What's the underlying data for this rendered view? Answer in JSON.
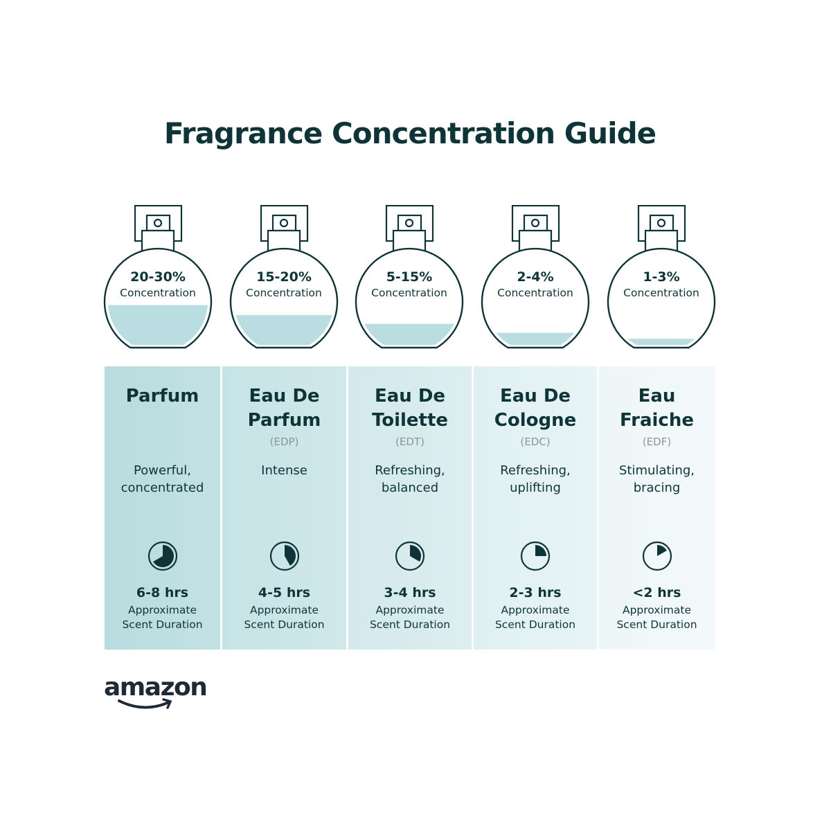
{
  "title": "Fragrance Concentration Guide",
  "colors": {
    "ink": "#0f3438",
    "liquid": "#b9dde0",
    "column_dark": "#b8dce0",
    "column_light": "#eef6f7"
  },
  "items": [
    {
      "concentration": "20-30%",
      "concentration_label": "Concentration",
      "fill_level": 0.43,
      "name_line1": "Parfum",
      "name_line2": "",
      "abbreviation": "",
      "desc_line1": "Powerful,",
      "desc_line2": "concentrated",
      "duration": "6-8 hrs",
      "duration_clock_hours": 8,
      "duration_line1": "Approximate",
      "duration_line2": "Scent Duration"
    },
    {
      "concentration": "15-20%",
      "concentration_label": "Concentration",
      "fill_level": 0.33,
      "name_line1": "Eau De",
      "name_line2": "Parfum",
      "abbreviation": "(EDP)",
      "desc_line1": "Intense",
      "desc_line2": "",
      "duration": "4-5 hrs",
      "duration_clock_hours": 5,
      "duration_line1": "Approximate",
      "duration_line2": "Scent Duration"
    },
    {
      "concentration": "5-15%",
      "concentration_label": "Concentration",
      "fill_level": 0.24,
      "name_line1": "Eau De",
      "name_line2": "Toilette",
      "abbreviation": "(EDT)",
      "desc_line1": "Refreshing,",
      "desc_line2": "balanced",
      "duration": "3-4 hrs",
      "duration_clock_hours": 4,
      "duration_line1": "Approximate",
      "duration_line2": "Scent Duration"
    },
    {
      "concentration": "2-4%",
      "concentration_label": "Concentration",
      "fill_level": 0.15,
      "name_line1": "Eau De",
      "name_line2": "Cologne",
      "abbreviation": "(EDC)",
      "desc_line1": "Refreshing,",
      "desc_line2": "uplifting",
      "duration": "2-3 hrs",
      "duration_clock_hours": 3,
      "duration_line1": "Approximate",
      "duration_line2": "Scent Duration"
    },
    {
      "concentration": "1-3%",
      "concentration_label": "Concentration",
      "fill_level": 0.09,
      "name_line1": "Eau",
      "name_line2": "Fraiche",
      "abbreviation": "(EDF)",
      "desc_line1": "Stimulating,",
      "desc_line2": "bracing",
      "duration": "<2 hrs",
      "duration_clock_hours": 2,
      "duration_line1": "Approximate",
      "duration_line2": "Scent Duration"
    }
  ],
  "logo": {
    "text": "amazon"
  }
}
